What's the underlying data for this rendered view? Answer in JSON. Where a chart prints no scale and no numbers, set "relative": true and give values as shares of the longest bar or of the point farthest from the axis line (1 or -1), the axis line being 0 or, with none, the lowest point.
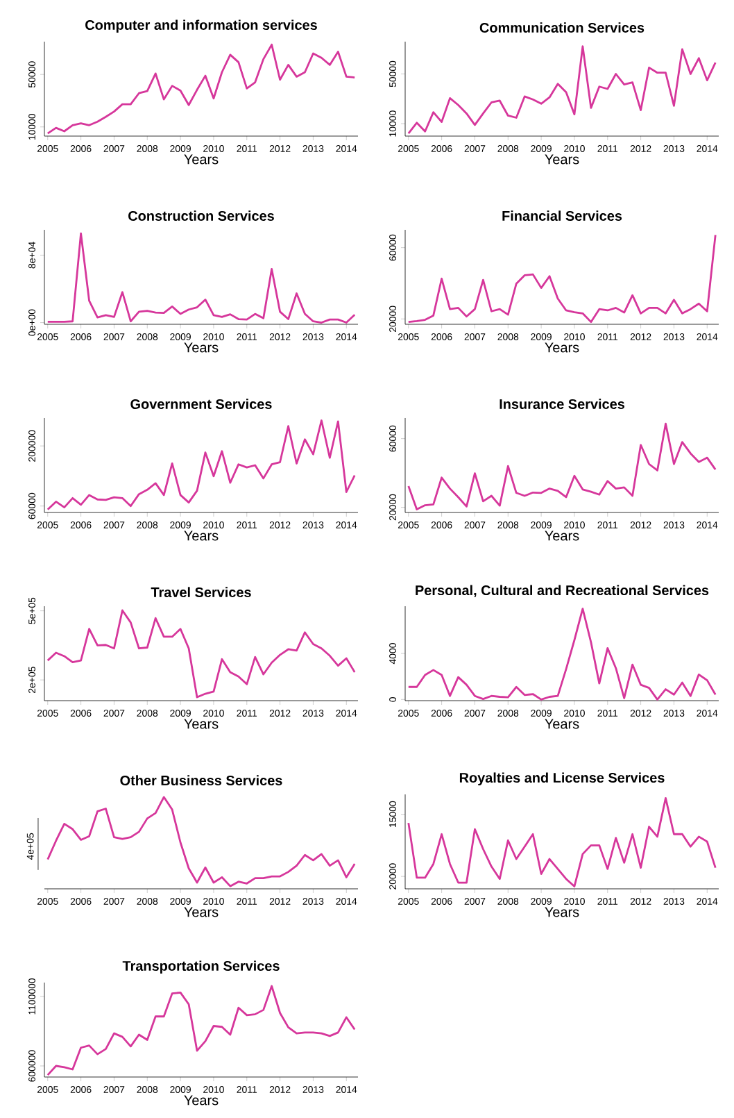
{
  "chart_data": [
    {
      "type": "line",
      "title": "Computer and information services",
      "xlabel": "Years",
      "color": "#d6379b",
      "xlim": [
        2004.9,
        2014.35
      ],
      "xticks": [
        2005,
        2006,
        2007,
        2008,
        2009,
        2010,
        2011,
        2012,
        2013,
        2014
      ],
      "ylim": [
        3000,
        75000
      ],
      "yticks": [
        10000,
        50000
      ],
      "x": [
        2005,
        2005.25,
        2005.5,
        2005.75,
        2006,
        2006.25,
        2006.5,
        2006.75,
        2007,
        2007.25,
        2007.5,
        2007.75,
        2008,
        2008.25,
        2008.5,
        2008.75,
        2009,
        2009.25,
        2009.5,
        2009.75,
        2010,
        2010.25,
        2010.5,
        2010.75,
        2011,
        2011.25,
        2011.5,
        2011.75,
        2012,
        2012.25,
        2012.5,
        2012.75,
        2013,
        2013.25,
        2013.5,
        2013.75,
        2014,
        2014.25
      ],
      "values": [
        5000,
        9300,
        6700,
        11300,
        12700,
        11300,
        14000,
        17700,
        21700,
        27300,
        27300,
        35700,
        37300,
        50700,
        31000,
        41300,
        37700,
        26700,
        38300,
        49000,
        31700,
        51700,
        65000,
        59300,
        39300,
        44000,
        61700,
        72700,
        46000,
        57300,
        48300,
        51700,
        66000,
        62700,
        57300,
        67300,
        48300,
        47700
      ]
    },
    {
      "type": "line",
      "title": "Communication Services",
      "xlabel": "Years",
      "color": "#d6379b",
      "xlim": [
        2004.9,
        2014.35
      ],
      "xticks": [
        2005,
        2006,
        2007,
        2008,
        2009,
        2010,
        2011,
        2012,
        2013,
        2014
      ],
      "ylim": [
        0,
        76000
      ],
      "yticks": [
        10000,
        50000
      ],
      "x": [
        2005,
        2005.25,
        2005.5,
        2005.75,
        2006,
        2006.25,
        2006.5,
        2006.75,
        2007,
        2007.25,
        2007.5,
        2007.75,
        2008,
        2008.25,
        2008.5,
        2008.75,
        2009,
        2009.25,
        2009.5,
        2009.75,
        2010,
        2010.25,
        2010.5,
        2010.75,
        2011,
        2011.25,
        2011.5,
        2011.75,
        2012,
        2012.25,
        2012.5,
        2012.75,
        2013,
        2013.25,
        2013.5,
        2013.75,
        2014,
        2014.25
      ],
      "values": [
        2100,
        10700,
        3800,
        19200,
        11400,
        30500,
        25000,
        18200,
        9000,
        18200,
        27100,
        28500,
        16500,
        14800,
        31900,
        29500,
        26100,
        31200,
        42100,
        35300,
        17500,
        72200,
        22700,
        39800,
        38000,
        50000,
        41500,
        43200,
        20900,
        55100,
        51000,
        51000,
        24400,
        69900,
        50000,
        62700,
        44900,
        59200
      ]
    },
    {
      "type": "line",
      "title": "Construction Services",
      "xlabel": "Years",
      "color": "#d6379b",
      "xlim": [
        2004.9,
        2014.35
      ],
      "xticks": [
        2005,
        2006,
        2007,
        2008,
        2009,
        2010,
        2011,
        2012,
        2013,
        2014
      ],
      "ylim": [
        -2000,
        110000
      ],
      "yticks": [
        {
          "value": 0,
          "label": "0e+00"
        },
        {
          "value": 80000,
          "label": "8e+04"
        }
      ],
      "x": [
        2005,
        2005.25,
        2005.5,
        2005.75,
        2006,
        2006.25,
        2006.5,
        2006.75,
        2007,
        2007.25,
        2007.5,
        2007.75,
        2008,
        2008.25,
        2008.5,
        2008.75,
        2009,
        2009.25,
        2009.5,
        2009.75,
        2010,
        2010.25,
        2010.5,
        2010.75,
        2011,
        2011.25,
        2011.5,
        2011.75,
        2012,
        2012.25,
        2012.5,
        2012.75,
        2013,
        2013.25,
        2013.5,
        2013.75,
        2014,
        2014.25
      ],
      "values": [
        1000,
        1000,
        1000,
        1500,
        105800,
        25800,
        6200,
        8800,
        6700,
        36100,
        1500,
        12900,
        13900,
        11900,
        11400,
        19100,
        10300,
        15500,
        18100,
        27300,
        8800,
        6700,
        9800,
        4100,
        3600,
        10300,
        5200,
        63500,
        12900,
        4100,
        34600,
        10300,
        1500,
        0,
        3600,
        3600,
        0,
        9300
      ]
    },
    {
      "type": "line",
      "title": "Financial Services",
      "xlabel": "Years",
      "color": "#d6379b",
      "xlim": [
        2004.9,
        2014.35
      ],
      "xticks": [
        2005,
        2006,
        2007,
        2008,
        2009,
        2010,
        2011,
        2012,
        2013,
        2014
      ],
      "ylim": [
        17000,
        70000
      ],
      "yticks": [
        20000,
        60000
      ],
      "x": [
        2005,
        2005.25,
        2005.5,
        2005.75,
        2006,
        2006.25,
        2006.5,
        2006.75,
        2007,
        2007.25,
        2007.5,
        2007.75,
        2008,
        2008.25,
        2008.5,
        2008.75,
        2009,
        2009.25,
        2009.5,
        2009.75,
        2010,
        2010.25,
        2010.5,
        2010.75,
        2011,
        2011.25,
        2011.5,
        2011.75,
        2012,
        2012.25,
        2012.5,
        2012.75,
        2013,
        2013.25,
        2013.5,
        2013.75,
        2014,
        2014.25
      ],
      "values": [
        18300,
        18800,
        19500,
        21900,
        42600,
        25500,
        26200,
        21400,
        25500,
        41900,
        24300,
        25500,
        22400,
        39800,
        44500,
        45000,
        37400,
        44000,
        31400,
        24800,
        23800,
        23100,
        18300,
        25500,
        24800,
        26200,
        23600,
        33300,
        23100,
        26200,
        26200,
        23100,
        30700,
        23100,
        25500,
        28600,
        24300,
        67100
      ]
    },
    {
      "type": "line",
      "title": "Government Services",
      "xlabel": "Years",
      "color": "#d6379b",
      "xlim": [
        2004.9,
        2014.35
      ],
      "xticks": [
        2005,
        2006,
        2007,
        2008,
        2009,
        2010,
        2011,
        2012,
        2013,
        2014
      ],
      "ylim": [
        45000,
        265000
      ],
      "yticks": [
        60000,
        200000
      ],
      "x": [
        2005,
        2005.25,
        2005.5,
        2005.75,
        2006,
        2006.25,
        2006.5,
        2006.75,
        2007,
        2007.25,
        2007.5,
        2007.75,
        2008,
        2008.25,
        2008.5,
        2008.75,
        2009,
        2009.25,
        2009.5,
        2009.75,
        2010,
        2010.25,
        2010.5,
        2010.75,
        2011,
        2011.25,
        2011.5,
        2011.75,
        2012,
        2012.25,
        2012.5,
        2012.75,
        2013,
        2013.25,
        2013.5,
        2013.75,
        2014,
        2014.25
      ],
      "values": [
        51800,
        70200,
        56900,
        78400,
        63100,
        85600,
        75300,
        74300,
        80400,
        78400,
        60000,
        87600,
        97800,
        113100,
        85600,
        159100,
        85600,
        68200,
        95800,
        184700,
        129500,
        187800,
        114200,
        157100,
        149900,
        155000,
        124400,
        157100,
        162200,
        246000,
        159100,
        215300,
        180600,
        259300,
        172400,
        257200,
        92700,
        131500
      ]
    },
    {
      "type": "line",
      "title": "Insurance Services",
      "xlabel": "Years",
      "color": "#d6379b",
      "xlim": [
        2004.9,
        2014.35
      ],
      "xticks": [
        2005,
        2006,
        2007,
        2008,
        2009,
        2010,
        2011,
        2012,
        2013,
        2014
      ],
      "ylim": [
        17000,
        72000
      ],
      "yticks": [
        20000,
        60000
      ],
      "x": [
        2005,
        2005.25,
        2005.5,
        2005.75,
        2006,
        2006.25,
        2006.5,
        2006.75,
        2007,
        2007.25,
        2007.5,
        2007.75,
        2008,
        2008.25,
        2008.5,
        2008.75,
        2009,
        2009.25,
        2009.5,
        2009.75,
        2010,
        2010.25,
        2010.5,
        2010.75,
        2011,
        2011.25,
        2011.5,
        2011.75,
        2012,
        2012.25,
        2012.5,
        2012.75,
        2013,
        2013.25,
        2013.5,
        2013.75,
        2014,
        2014.25
      ],
      "values": [
        32400,
        18800,
        21200,
        21700,
        37300,
        30900,
        25900,
        20500,
        39800,
        23500,
        26700,
        21000,
        44000,
        28400,
        26700,
        28600,
        28400,
        30900,
        29600,
        25900,
        38300,
        30400,
        29100,
        27400,
        35300,
        30900,
        31600,
        26700,
        56300,
        45200,
        41500,
        68700,
        45200,
        58000,
        51400,
        46400,
        48900,
        42000
      ]
    },
    {
      "type": "line",
      "title": "Travel Services",
      "xlabel": "Years",
      "color": "#d6379b",
      "xlim": [
        2004.9,
        2014.35
      ],
      "xticks": [
        2005,
        2006,
        2007,
        2008,
        2009,
        2010,
        2011,
        2012,
        2013,
        2014
      ],
      "ylim": [
        110000,
        520000
      ],
      "yticks": [
        {
          "value": 200000,
          "label": "2e+05"
        },
        {
          "value": 500000,
          "label": "5e+05"
        }
      ],
      "x": [
        2005,
        2005.25,
        2005.5,
        2005.75,
        2006,
        2006.25,
        2006.5,
        2006.75,
        2007,
        2007.25,
        2007.5,
        2007.75,
        2008,
        2008.25,
        2008.5,
        2008.75,
        2009,
        2009.25,
        2009.5,
        2009.75,
        2010,
        2010.25,
        2010.5,
        2010.75,
        2011,
        2011.25,
        2011.5,
        2011.75,
        2012,
        2012.25,
        2012.5,
        2012.75,
        2013,
        2013.25,
        2013.5,
        2013.75,
        2014,
        2014.25
      ],
      "values": [
        284400,
        318100,
        303100,
        276900,
        284400,
        421300,
        350000,
        351900,
        336900,
        501900,
        449400,
        336900,
        340600,
        468100,
        387500,
        387500,
        421300,
        336900,
        125000,
        140000,
        149400,
        290000,
        233800,
        215000,
        181300,
        299400,
        224400,
        275000,
        308800,
        333100,
        327500,
        406300,
        355600,
        336900,
        305000,
        261900,
        293800,
        233800
      ]
    },
    {
      "type": "line",
      "title": "Personal, Cultural and Recreational Services",
      "xlabel": "Years",
      "color": "#d6379b",
      "xlim": [
        2004.9,
        2014.35
      ],
      "xticks": [
        2005,
        2006,
        2007,
        2008,
        2009,
        2010,
        2011,
        2012,
        2013,
        2014
      ],
      "ylim": [
        -100,
        8100
      ],
      "yticks": [
        0,
        4000
      ],
      "x": [
        2005,
        2005.25,
        2005.5,
        2005.75,
        2006,
        2006.25,
        2006.5,
        2006.75,
        2007,
        2007.25,
        2007.5,
        2007.75,
        2008,
        2008.25,
        2008.5,
        2008.75,
        2009,
        2009.25,
        2009.5,
        2009.75,
        2010,
        2010.25,
        2010.5,
        2010.75,
        2011,
        2011.25,
        2011.5,
        2011.75,
        2012,
        2012.25,
        2012.5,
        2012.75,
        2013,
        2013.25,
        2013.5,
        2013.75,
        2014,
        2014.25
      ],
      "values": [
        1090,
        1090,
        2130,
        2560,
        2130,
        310,
        1940,
        1280,
        310,
        40,
        310,
        230,
        190,
        1090,
        390,
        470,
        0,
        230,
        310,
        2640,
        5160,
        7880,
        4970,
        1400,
        4460,
        2720,
        120,
        3030,
        1280,
        1010,
        0,
        890,
        430,
        1470,
        310,
        2170,
        1670,
        430
      ]
    },
    {
      "type": "line",
      "title": "Other Business Services",
      "xlabel": "Years",
      "color": "#d6379b",
      "relative": true,
      "annotations": [
        "4e+05"
      ],
      "xlim": [
        2004.9,
        2014.35
      ],
      "xticks": [
        2005,
        2006,
        2007,
        2008,
        2009,
        2010,
        2011,
        2012,
        2013,
        2014
      ],
      "x": [
        2005,
        2005.25,
        2005.5,
        2005.75,
        2006,
        2006.25,
        2006.5,
        2006.75,
        2007,
        2007.25,
        2007.5,
        2007.75,
        2008,
        2008.25,
        2008.5,
        2008.75,
        2009,
        2009.25,
        2009.5,
        2009.75,
        2010,
        2010.25,
        2010.5,
        2010.75,
        2011,
        2011.25,
        2011.5,
        2011.75,
        2012,
        2012.25,
        2012.5,
        2012.75,
        2013,
        2013.25,
        2013.5,
        2013.75,
        2014,
        2014.25
      ],
      "values": [
        0.3,
        0.51,
        0.7,
        0.64,
        0.52,
        0.56,
        0.84,
        0.87,
        0.55,
        0.53,
        0.55,
        0.61,
        0.76,
        0.82,
        1,
        0.86,
        0.49,
        0.2,
        0.04,
        0.21,
        0.04,
        0.1,
        0,
        0.05,
        0.03,
        0.09,
        0.09,
        0.11,
        0.11,
        0.16,
        0.23,
        0.35,
        0.29,
        0.36,
        0.23,
        0.29,
        0.1,
        0.25
      ]
    },
    {
      "type": "line",
      "title": "Royalties and License Services",
      "xlabel": "Years",
      "color": "#d6379b",
      "xlim": [
        2004.9,
        2014.35
      ],
      "xticks": [
        2005,
        2006,
        2007,
        2008,
        2009,
        2010,
        2011,
        2012,
        2013,
        2014
      ],
      "ylim": [
        21000,
        13400
      ],
      "yticks": [
        15000,
        20000
      ],
      "x": [
        2005,
        2005.25,
        2005.5,
        2005.75,
        2006,
        2006.25,
        2006.5,
        2006.75,
        2007,
        2007.25,
        2007.5,
        2007.75,
        2008,
        2008.25,
        2008.5,
        2008.75,
        2009,
        2009.25,
        2009.5,
        2009.75,
        2010,
        2010.25,
        2010.5,
        2010.75,
        2011,
        2011.25,
        2011.5,
        2011.75,
        2012,
        2012.25,
        2012.5,
        2012.75,
        2013,
        2013.25,
        2013.5,
        2013.75,
        2014,
        2014.25
      ],
      "values": [
        15700,
        20100,
        20100,
        19000,
        16600,
        19000,
        20500,
        20500,
        16200,
        17800,
        19200,
        20200,
        17100,
        18600,
        17600,
        16600,
        19800,
        18600,
        19400,
        20200,
        20800,
        18200,
        17500,
        17500,
        19400,
        16900,
        18900,
        16600,
        19300,
        16000,
        16800,
        13700,
        16600,
        16600,
        17600,
        16800,
        17200,
        19300
      ]
    },
    {
      "type": "line",
      "title": "Transportation Services",
      "xlabel": "Years",
      "color": "#d6379b",
      "xlim": [
        2004.9,
        2014.35
      ],
      "xticks": [
        2005,
        2006,
        2007,
        2008,
        2009,
        2010,
        2011,
        2012,
        2013,
        2014
      ],
      "ylim": [
        520000,
        1200000
      ],
      "yticks": [
        600000,
        1100000
      ],
      "x": [
        2005,
        2005.25,
        2005.5,
        2005.75,
        2006,
        2006.25,
        2006.5,
        2006.75,
        2007,
        2007.25,
        2007.5,
        2007.75,
        2008,
        2008.25,
        2008.5,
        2008.75,
        2009,
        2009.25,
        2009.5,
        2009.75,
        2010,
        2010.25,
        2010.5,
        2010.75,
        2011,
        2011.25,
        2011.5,
        2011.75,
        2012,
        2012.25,
        2012.5,
        2012.75,
        2013,
        2013.25,
        2013.5,
        2013.75,
        2014,
        2014.25
      ],
      "values": [
        534400,
        600000,
        590600,
        575000,
        731300,
        746900,
        684400,
        721900,
        834400,
        809400,
        740600,
        825000,
        787500,
        956300,
        956300,
        1121900,
        1128100,
        1043800,
        709400,
        778100,
        887500,
        881300,
        825000,
        1018800,
        965600,
        971900,
        1003100,
        1175000,
        981300,
        878100,
        834400,
        840600,
        840600,
        834400,
        815600,
        840600,
        950000,
        862500
      ]
    }
  ]
}
